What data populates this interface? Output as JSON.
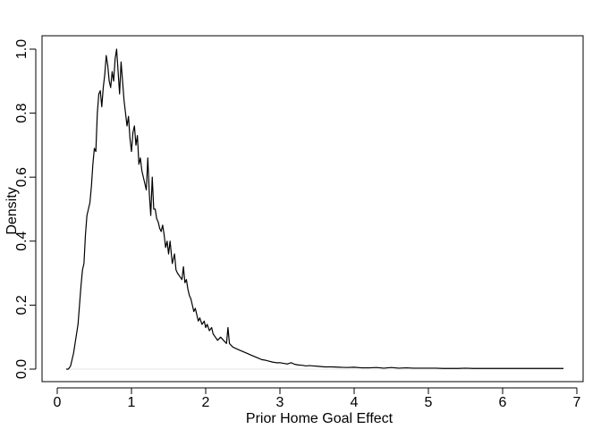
{
  "chart_data": {
    "type": "line",
    "title": "",
    "xlabel": "Prior Home Goal Effect",
    "ylabel": "Density",
    "xlim": [
      0,
      7
    ],
    "ylim": [
      0,
      1
    ],
    "xticks": [
      0,
      1,
      2,
      3,
      4,
      5,
      6,
      7
    ],
    "yticks": [
      0.0,
      0.2,
      0.4,
      0.6,
      0.8,
      1.0
    ],
    "xtick_labels": [
      "0",
      "1",
      "2",
      "3",
      "4",
      "5",
      "6",
      "7"
    ],
    "ytick_labels": [
      "0.0",
      "0.2",
      "0.4",
      "0.6",
      "0.8",
      "1.0"
    ],
    "grid": false,
    "baseline": 0,
    "series": [
      {
        "color": "#000000",
        "x": [
          0.12,
          0.15,
          0.18,
          0.2,
          0.22,
          0.24,
          0.26,
          0.28,
          0.3,
          0.32,
          0.34,
          0.36,
          0.38,
          0.4,
          0.42,
          0.44,
          0.46,
          0.48,
          0.5,
          0.52,
          0.54,
          0.56,
          0.58,
          0.6,
          0.62,
          0.64,
          0.66,
          0.68,
          0.7,
          0.72,
          0.74,
          0.76,
          0.78,
          0.8,
          0.82,
          0.84,
          0.86,
          0.88,
          0.9,
          0.92,
          0.94,
          0.96,
          0.98,
          1.0,
          1.02,
          1.04,
          1.06,
          1.08,
          1.1,
          1.12,
          1.14,
          1.16,
          1.18,
          1.2,
          1.22,
          1.24,
          1.26,
          1.28,
          1.3,
          1.32,
          1.34,
          1.36,
          1.38,
          1.4,
          1.42,
          1.44,
          1.46,
          1.48,
          1.5,
          1.52,
          1.55,
          1.58,
          1.6,
          1.62,
          1.65,
          1.68,
          1.7,
          1.72,
          1.74,
          1.76,
          1.78,
          1.8,
          1.82,
          1.84,
          1.86,
          1.88,
          1.9,
          1.92,
          1.95,
          1.98,
          2.0,
          2.02,
          2.05,
          2.08,
          2.1,
          2.13,
          2.16,
          2.2,
          2.24,
          2.28,
          2.3,
          2.32,
          2.36,
          2.4,
          2.45,
          2.5,
          2.55,
          2.6,
          2.65,
          2.7,
          2.75,
          2.8,
          2.85,
          2.9,
          2.95,
          3.0,
          3.05,
          3.1,
          3.15,
          3.2,
          3.25,
          3.3,
          3.35,
          3.4,
          3.45,
          3.5,
          3.55,
          3.6,
          3.7,
          3.8,
          3.9,
          4.0,
          4.1,
          4.2,
          4.3,
          4.4,
          4.5,
          4.6,
          4.7,
          4.8,
          4.9,
          5.0,
          5.1,
          5.2,
          5.3,
          5.4,
          5.5,
          5.6,
          5.7,
          5.8,
          5.9,
          6.0,
          6.1,
          6.2,
          6.3,
          6.4,
          6.5,
          6.6,
          6.7,
          6.82
        ],
        "y": [
          0.0,
          0.0,
          0.01,
          0.03,
          0.05,
          0.08,
          0.11,
          0.14,
          0.2,
          0.26,
          0.31,
          0.33,
          0.42,
          0.48,
          0.5,
          0.52,
          0.57,
          0.64,
          0.69,
          0.68,
          0.8,
          0.86,
          0.87,
          0.82,
          0.88,
          0.92,
          0.98,
          0.95,
          0.9,
          0.88,
          0.93,
          0.9,
          0.97,
          1.0,
          0.93,
          0.86,
          0.96,
          0.9,
          0.84,
          0.8,
          0.76,
          0.79,
          0.72,
          0.68,
          0.74,
          0.76,
          0.7,
          0.73,
          0.64,
          0.66,
          0.62,
          0.6,
          0.58,
          0.56,
          0.66,
          0.55,
          0.48,
          0.6,
          0.5,
          0.5,
          0.47,
          0.46,
          0.44,
          0.43,
          0.45,
          0.42,
          0.38,
          0.4,
          0.36,
          0.4,
          0.33,
          0.36,
          0.31,
          0.3,
          0.29,
          0.28,
          0.32,
          0.27,
          0.28,
          0.25,
          0.23,
          0.22,
          0.2,
          0.18,
          0.19,
          0.17,
          0.15,
          0.16,
          0.14,
          0.15,
          0.13,
          0.14,
          0.12,
          0.13,
          0.11,
          0.1,
          0.09,
          0.1,
          0.09,
          0.08,
          0.13,
          0.08,
          0.07,
          0.065,
          0.06,
          0.055,
          0.05,
          0.045,
          0.04,
          0.035,
          0.03,
          0.028,
          0.025,
          0.022,
          0.02,
          0.02,
          0.018,
          0.016,
          0.02,
          0.015,
          0.013,
          0.012,
          0.01,
          0.011,
          0.01,
          0.009,
          0.008,
          0.007,
          0.007,
          0.006,
          0.005,
          0.006,
          0.004,
          0.004,
          0.005,
          0.003,
          0.005,
          0.003,
          0.004,
          0.003,
          0.003,
          0.003,
          0.003,
          0.002,
          0.002,
          0.002,
          0.003,
          0.002,
          0.002,
          0.002,
          0.002,
          0.002,
          0.002,
          0.002,
          0.002,
          0.002,
          0.002,
          0.002,
          0.002,
          0.002
        ]
      }
    ]
  }
}
